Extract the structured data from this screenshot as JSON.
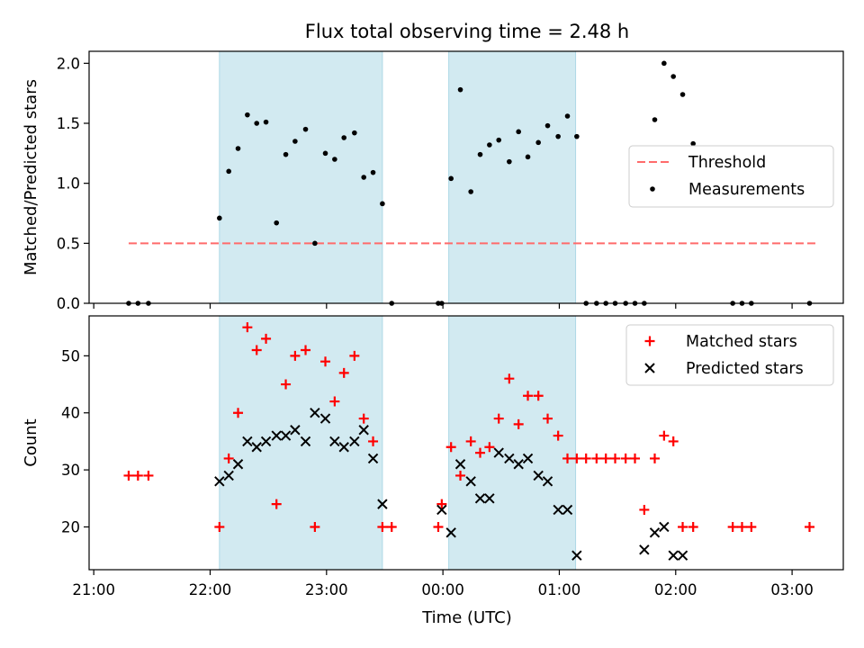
{
  "chart_data": {
    "title": "Flux total observing time = 2.48 h",
    "xlabel": "Time (UTC)",
    "x_tick_labels": [
      "21:00",
      "22:00",
      "23:00",
      "00:00",
      "01:00",
      "02:00",
      "03:00"
    ],
    "x_ticks_hours": [
      0,
      1,
      2,
      3,
      4,
      5,
      6
    ],
    "xlim_hours": [
      -0.04,
      6.44
    ],
    "shaded_intervals_hours": [
      [
        1.08,
        2.48
      ],
      [
        3.05,
        4.14
      ]
    ],
    "shade_color": "#add8e6",
    "panels": [
      {
        "type": "scatter",
        "ylabel": "Matched/Predicted stars",
        "ylim": [
          0,
          2.1
        ],
        "y_ticks": [
          0.0,
          0.5,
          1.0,
          1.5,
          2.0
        ],
        "y_tick_labels": [
          "0.0",
          "0.5",
          "1.0",
          "1.5",
          "2.0"
        ],
        "legend_position": "center-right",
        "series": [
          {
            "name": "Threshold",
            "style": "dashed-line",
            "color": "#ff6b6b",
            "x": [
              0.3,
              6.2
            ],
            "y": [
              0.5,
              0.5
            ]
          },
          {
            "name": "Measurements",
            "style": "dot",
            "color": "#000000",
            "x": [
              0.3,
              0.38,
              0.47,
              1.08,
              1.16,
              1.24,
              1.32,
              1.4,
              1.48,
              1.57,
              1.65,
              1.73,
              1.82,
              1.9,
              1.99,
              2.07,
              2.15,
              2.24,
              2.32,
              2.4,
              2.48,
              2.56,
              2.96,
              2.99,
              3.07,
              3.15,
              3.24,
              3.32,
              3.4,
              3.48,
              3.57,
              3.65,
              3.73,
              3.82,
              3.9,
              3.99,
              4.07,
              4.15,
              4.23,
              4.32,
              4.4,
              4.48,
              4.57,
              4.65,
              4.73,
              4.82,
              4.9,
              4.98,
              5.06,
              5.15,
              5.49,
              5.57,
              5.65,
              6.15
            ],
            "y": [
              0,
              0,
              0,
              0.71,
              1.1,
              1.29,
              1.57,
              1.5,
              1.51,
              0.67,
              1.24,
              1.35,
              1.45,
              0.5,
              1.25,
              1.2,
              1.38,
              1.42,
              1.05,
              1.09,
              0.83,
              0,
              0,
              0,
              1.04,
              1.78,
              0.93,
              1.24,
              1.32,
              1.36,
              1.18,
              1.43,
              1.22,
              1.34,
              1.48,
              1.39,
              1.56,
              1.39,
              0,
              0,
              0,
              0,
              0,
              0,
              0,
              1.53,
              2.0,
              1.89,
              1.74,
              1.33,
              0,
              0,
              0,
              0
            ]
          }
        ]
      },
      {
        "type": "scatter",
        "ylabel": "Count",
        "ylim": [
          12.5,
          57
        ],
        "y_ticks": [
          20,
          30,
          40,
          50
        ],
        "y_tick_labels": [
          "20",
          "30",
          "40",
          "50"
        ],
        "legend_position": "top-right",
        "series": [
          {
            "name": "Matched stars",
            "marker": "plus",
            "color": "#ff0000",
            "x": [
              0.3,
              0.38,
              0.47,
              1.08,
              1.16,
              1.24,
              1.32,
              1.4,
              1.48,
              1.57,
              1.65,
              1.73,
              1.82,
              1.9,
              1.99,
              2.07,
              2.15,
              2.24,
              2.32,
              2.4,
              2.48,
              2.56,
              2.96,
              2.99,
              3.07,
              3.15,
              3.24,
              3.32,
              3.4,
              3.48,
              3.57,
              3.65,
              3.73,
              3.82,
              3.9,
              3.99,
              4.07,
              4.15,
              4.23,
              4.32,
              4.4,
              4.48,
              4.57,
              4.65,
              4.73,
              4.82,
              4.9,
              4.98,
              5.06,
              5.15,
              5.49,
              5.57,
              5.65,
              6.15
            ],
            "y": [
              29,
              29,
              29,
              20,
              32,
              40,
              55,
              51,
              53,
              24,
              45,
              50,
              51,
              20,
              49,
              42,
              47,
              50,
              39,
              35,
              20,
              20,
              20,
              24,
              34,
              29,
              35,
              33,
              34,
              39,
              46,
              38,
              43,
              43,
              39,
              36,
              32,
              32,
              32,
              32,
              32,
              32,
              32,
              32,
              23,
              32,
              36,
              35,
              20,
              20,
              20,
              20,
              20,
              20
            ]
          },
          {
            "name": "Predicted stars",
            "marker": "x",
            "color": "#000000",
            "x": [
              1.08,
              1.16,
              1.24,
              1.32,
              1.4,
              1.48,
              1.57,
              1.65,
              1.73,
              1.82,
              1.9,
              1.99,
              2.07,
              2.15,
              2.24,
              2.32,
              2.4,
              2.48,
              2.99,
              3.07,
              3.15,
              3.24,
              3.32,
              3.4,
              3.48,
              3.57,
              3.65,
              3.73,
              3.82,
              3.9,
              3.99,
              4.07,
              4.15,
              4.73,
              4.82,
              4.9,
              4.98,
              5.06
            ],
            "y": [
              28,
              29,
              31,
              35,
              34,
              35,
              36,
              36,
              37,
              35,
              40,
              39,
              35,
              34,
              35,
              37,
              32,
              24,
              23,
              19,
              31,
              28,
              25,
              25,
              33,
              32,
              31,
              32,
              29,
              28,
              23,
              23,
              15,
              16,
              19,
              20,
              15,
              15
            ]
          }
        ]
      }
    ]
  }
}
